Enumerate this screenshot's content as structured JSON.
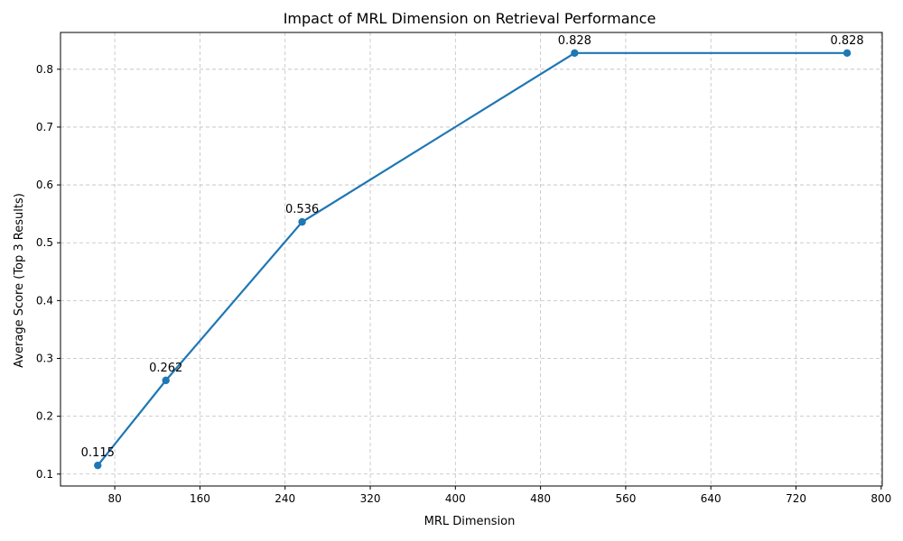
{
  "chart_data": {
    "type": "line",
    "title": "Impact of MRL Dimension on Retrieval Performance",
    "xlabel": "MRL Dimension",
    "ylabel": "Average Score (Top 3 Results)",
    "x": [
      64,
      128,
      256,
      512,
      768
    ],
    "series": [
      {
        "values": [
          0.115,
          0.262,
          0.536,
          0.828,
          0.828
        ]
      }
    ],
    "data_labels": [
      "0.115",
      "0.262",
      "0.536",
      "0.828",
      "0.828"
    ],
    "xticks": [
      80,
      160,
      240,
      320,
      400,
      480,
      560,
      640,
      720,
      800
    ],
    "yticks": [
      0.1,
      0.2,
      0.3,
      0.4,
      0.5,
      0.6,
      0.7,
      0.8
    ],
    "xlim": [
      29,
      801
    ],
    "ylim": [
      0.0794,
      0.8636
    ],
    "grid": true,
    "color": "#1f77b4"
  }
}
